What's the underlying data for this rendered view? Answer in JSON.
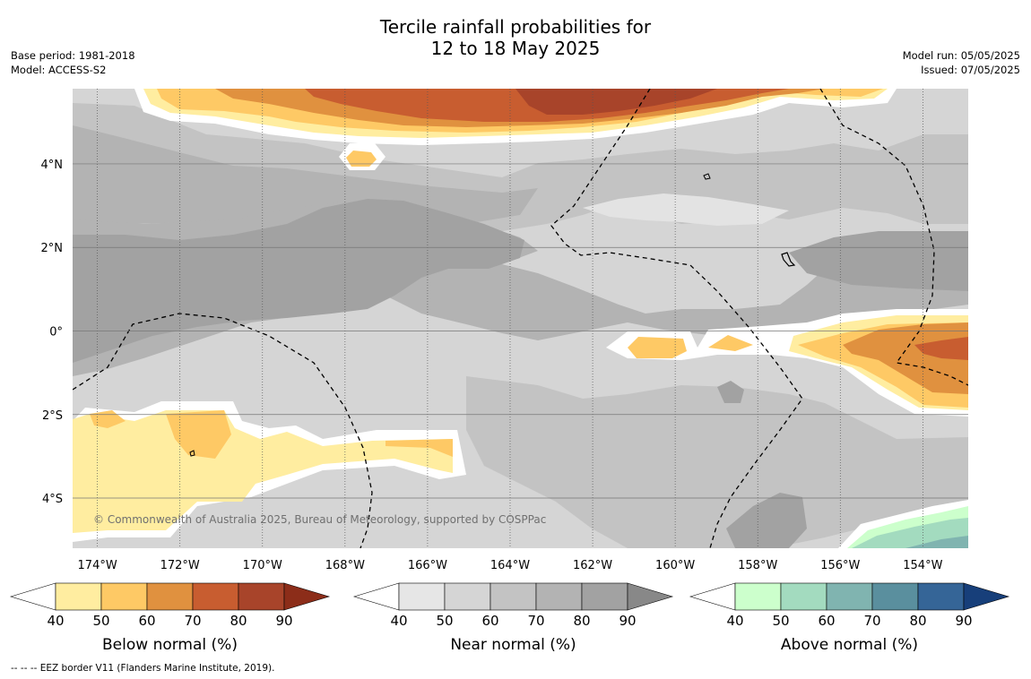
{
  "title_line1": "Tercile rainfall probabilities for",
  "title_line2": "12 to 18 May 2025",
  "meta_left": [
    "Base period: 1981-2018",
    "Model: ACCESS-S2"
  ],
  "meta_right": [
    "Model run: 05/05/2025",
    "Issued: 07/05/2025"
  ],
  "copyright": "© Commonwealth of Australia 2025, Bureau of Meteorology, supported by COSPPac",
  "footer_note": "--  --  -- EEZ border V11 (Flanders Marine Institute, 2019).",
  "map": {
    "lon_range": [
      -174.6,
      -152.9
    ],
    "lat_range": [
      -5.2,
      5.8
    ],
    "lon_ticks": [
      "174°W",
      "172°W",
      "170°W",
      "168°W",
      "166°W",
      "164°W",
      "162°W",
      "160°W",
      "158°W",
      "156°W",
      "154°W"
    ],
    "lat_ticks": [
      "4°N",
      "2°N",
      "0°",
      "2°S",
      "4°S"
    ]
  },
  "colorbars": [
    {
      "title": "Below normal (%)",
      "ticks": [
        "40",
        "50",
        "60",
        "70",
        "80",
        "90"
      ],
      "colors": [
        "#ffffff",
        "#ffeda0",
        "#fec965",
        "#e0913f",
        "#c85d30",
        "#a8442a",
        "#8c2d19"
      ]
    },
    {
      "title": "Near normal (%)",
      "ticks": [
        "40",
        "50",
        "60",
        "70",
        "80",
        "90"
      ],
      "colors": [
        "#ffffff",
        "#e6e6e6",
        "#d5d5d5",
        "#c3c3c3",
        "#b3b3b3",
        "#a2a2a2",
        "#888888"
      ]
    },
    {
      "title": "Above normal (%)",
      "ticks": [
        "40",
        "50",
        "60",
        "70",
        "80",
        "90"
      ],
      "colors": [
        "#ffffff",
        "#ccffcc",
        "#a3dbbf",
        "#80b4b0",
        "#5a8f9e",
        "#356597",
        "#173f7a"
      ]
    }
  ]
}
